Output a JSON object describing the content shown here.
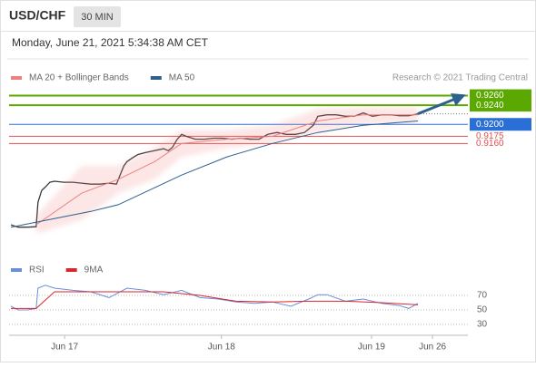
{
  "header": {
    "symbol": "USD/CHF",
    "interval": "30 MIN",
    "timestamp": "Monday, June 21, 2021 5:34:38 AM CET"
  },
  "chart_data": [
    {
      "type": "line",
      "source": "Research © 2021 Trading Central",
      "xlim": [
        0,
        100
      ],
      "ylim": [
        0.892,
        0.928
      ],
      "series": [
        {
          "color": "#3a3a3a",
          "x": [
            0.4,
            2,
            4,
            5.9,
            6.3,
            7.1,
            7.9,
            8.9,
            9.9,
            11.9,
            13.9,
            15.8,
            17.8,
            19.8,
            21.8,
            23.4,
            24.2,
            25,
            25.7,
            26.9,
            28.1,
            29.7,
            31.7,
            33.7,
            34.7,
            35.6,
            36.6,
            37.6,
            38.6,
            40.6,
            42.6,
            44.6,
            46.5,
            48.5,
            50.5,
            52.5,
            54.5,
            56.4,
            58.4,
            60.4,
            62.4,
            64.4,
            66.3,
            67.3,
            69.3,
            71.3,
            73.3,
            75.2,
            77.2,
            79.2,
            81.2,
            83.2,
            85.1,
            87.1,
            89.1
          ],
          "values": [
            0.899,
            0.8985,
            0.8985,
            0.8986,
            0.9037,
            0.9062,
            0.9069,
            0.9079,
            0.9081,
            0.9079,
            0.9079,
            0.9077,
            0.9075,
            0.9075,
            0.9077,
            0.9075,
            0.9094,
            0.9113,
            0.9122,
            0.913,
            0.9137,
            0.9141,
            0.9145,
            0.9149,
            0.9145,
            0.9152,
            0.9168,
            0.9179,
            0.9175,
            0.9169,
            0.9169,
            0.9171,
            0.9171,
            0.9169,
            0.9171,
            0.9169,
            0.9169,
            0.9179,
            0.9183,
            0.9179,
            0.9179,
            0.9183,
            0.9198,
            0.9217,
            0.922,
            0.922,
            0.9217,
            0.9217,
            0.9224,
            0.9217,
            0.922,
            0.922,
            0.9218,
            0.9218,
            0.9222
          ]
        },
        {
          "name": "MA 20 + Bollinger Bands",
          "color": "#f08080",
          "x": [
            5.9,
            15.8,
            23.8,
            31.7,
            37.6,
            47.5,
            57.4,
            67.3,
            77.2,
            89.1
          ],
          "values": [
            0.899,
            0.9056,
            0.9085,
            0.9122,
            0.916,
            0.9169,
            0.9175,
            0.9207,
            0.922,
            0.922
          ],
          "band_upper": [
            0.9009,
            0.9113,
            0.9113,
            0.9151,
            0.9188,
            0.9188,
            0.9198,
            0.9232,
            0.9235,
            0.9235
          ],
          "band_lower": [
            0.8971,
            0.9,
            0.9056,
            0.9085,
            0.9132,
            0.9151,
            0.916,
            0.9183,
            0.9201,
            0.9205
          ]
        },
        {
          "name": "MA 50",
          "color": "#2d5f8f",
          "x": [
            0.4,
            17.8,
            23.8,
            37.6,
            47.5,
            57.4,
            67.3,
            77.2,
            89.1
          ],
          "values": [
            0.8985,
            0.9018,
            0.9032,
            0.9094,
            0.9132,
            0.916,
            0.9183,
            0.9198,
            0.9207
          ]
        }
      ],
      "levels": [
        {
          "value": 0.926,
          "label": "0.9260",
          "color": "#5aa800",
          "style": "box"
        },
        {
          "value": 0.924,
          "label": "0.9240",
          "color": "#5aa800",
          "style": "box"
        },
        {
          "value": 0.92,
          "label": "0.9200",
          "color": "#2a6fd6",
          "style": "box"
        },
        {
          "value": 0.9175,
          "label": "0.9175",
          "color": "#e05050",
          "style": "text"
        },
        {
          "value": 0.916,
          "label": "0.9160",
          "color": "#e05050",
          "style": "text"
        }
      ],
      "arrow": {
        "x": [
          89.1,
          99
        ],
        "values": [
          0.9222,
          0.926
        ],
        "color": "#2d5f8f"
      }
    },
    {
      "type": "line",
      "xlim": [
        0,
        100
      ],
      "ylim": [
        15,
        90
      ],
      "yticks": [
        30,
        50,
        70
      ],
      "xticks": [
        {
          "value": 12.1,
          "label": "Jun 17"
        },
        {
          "value": 46.3,
          "label": "Jun 18"
        },
        {
          "value": 79,
          "label": "Jun 19"
        },
        {
          "value": 92.3,
          "label": "Jun 26"
        }
      ],
      "series": [
        {
          "name": "RSI",
          "color": "#6a8fd8",
          "x": [
            0.4,
            2,
            4,
            5.9,
            6.3,
            7.9,
            9.9,
            13.9,
            17.8,
            21.8,
            25.7,
            29.7,
            33.7,
            37.6,
            41.6,
            45.5,
            49.5,
            53.5,
            57.4,
            61.4,
            65.3,
            67.3,
            69.3,
            73.3,
            77.2,
            81.2,
            85.1,
            87.1,
            89.1
          ],
          "values": [
            55,
            50,
            50,
            52,
            80,
            84,
            80,
            77,
            75,
            67,
            80,
            77,
            71,
            77,
            67,
            65,
            61,
            59,
            61,
            55,
            65,
            71,
            71,
            62,
            65,
            59,
            56,
            52,
            59
          ]
        },
        {
          "name": "9MA",
          "color": "#d9262b",
          "x": [
            0.4,
            5.9,
            9.9,
            17.8,
            25.7,
            33.7,
            41.6,
            49.5,
            57.4,
            65.3,
            73.3,
            81.2,
            89.1
          ],
          "values": [
            52,
            52,
            75,
            75,
            75,
            75,
            70,
            62,
            61,
            62,
            62,
            60,
            57
          ]
        }
      ]
    }
  ]
}
